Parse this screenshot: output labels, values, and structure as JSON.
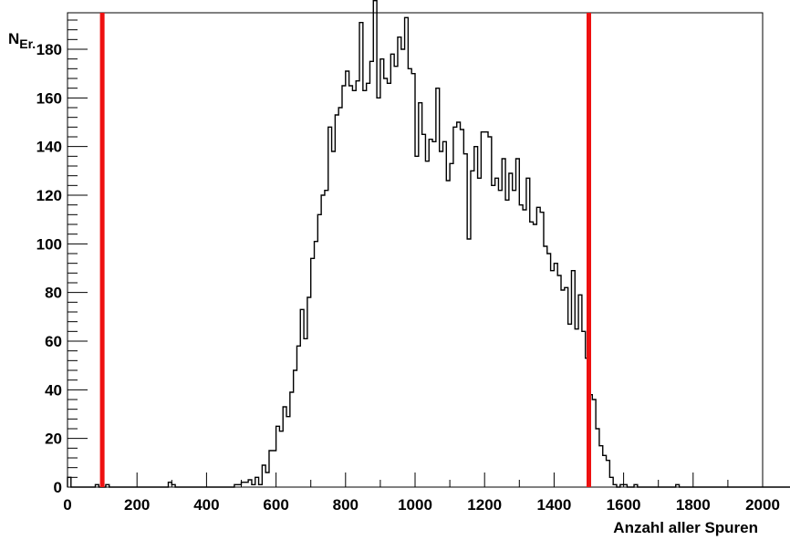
{
  "chart_data": {
    "type": "histogram",
    "xlabel": "Anzahl aller Spuren",
    "ylabel_main": "N",
    "ylabel_sub": "Er.",
    "xlim": [
      0,
      2000
    ],
    "ylim": [
      0,
      195
    ],
    "x_ticks": [
      0,
      200,
      400,
      600,
      800,
      1000,
      1200,
      1400,
      1600,
      1800,
      2000
    ],
    "y_ticks": [
      0,
      20,
      40,
      60,
      80,
      100,
      120,
      140,
      160,
      180
    ],
    "bin_width": 10,
    "bin_start": 0,
    "counts": [
      4,
      0,
      0,
      0,
      0,
      0,
      0,
      0,
      1,
      0,
      0,
      1,
      0,
      0,
      0,
      0,
      0,
      0,
      0,
      0,
      0,
      0,
      0,
      0,
      0,
      0,
      0,
      0,
      0,
      2,
      1,
      0,
      0,
      0,
      0,
      0,
      0,
      0,
      0,
      0,
      0,
      0,
      0,
      0,
      0,
      0,
      0,
      0,
      1,
      1,
      2,
      2,
      3,
      1,
      4,
      1,
      9,
      6,
      15,
      15,
      25,
      23,
      33,
      29,
      39,
      48,
      58,
      73,
      61,
      78,
      94,
      101,
      112,
      120,
      122,
      148,
      138,
      153,
      156,
      165,
      171,
      165,
      163,
      167,
      191,
      163,
      166,
      175,
      200,
      160,
      176,
      168,
      166,
      178,
      173,
      185,
      180,
      193,
      172,
      170,
      136,
      158,
      145,
      134,
      143,
      142,
      164,
      138,
      142,
      126,
      133,
      148,
      150,
      147,
      137,
      102,
      130,
      140,
      127,
      146,
      146,
      144,
      124,
      127,
      122,
      135,
      118,
      129,
      122,
      135,
      116,
      114,
      127,
      109,
      108,
      115,
      113,
      99,
      96,
      89,
      92,
      87,
      81,
      82,
      67,
      89,
      65,
      79,
      64,
      53,
      38,
      36,
      24,
      17,
      13,
      11,
      4,
      1,
      0,
      1,
      1,
      0,
      0,
      1,
      0,
      0,
      0,
      0,
      0,
      0,
      0,
      0,
      0,
      0,
      0,
      1,
      0,
      0,
      0,
      0,
      0,
      0,
      0,
      0,
      0,
      0,
      0,
      0,
      0,
      0,
      0,
      0,
      0,
      0,
      0,
      0,
      0,
      0,
      0,
      0,
      0,
      0,
      0,
      0,
      0,
      0,
      0,
      0,
      0,
      0
    ],
    "vertical_lines": [
      {
        "x": 100,
        "color": "#ee1111"
      },
      {
        "x": 1500,
        "color": "#ee1111"
      }
    ],
    "grid": false
  }
}
